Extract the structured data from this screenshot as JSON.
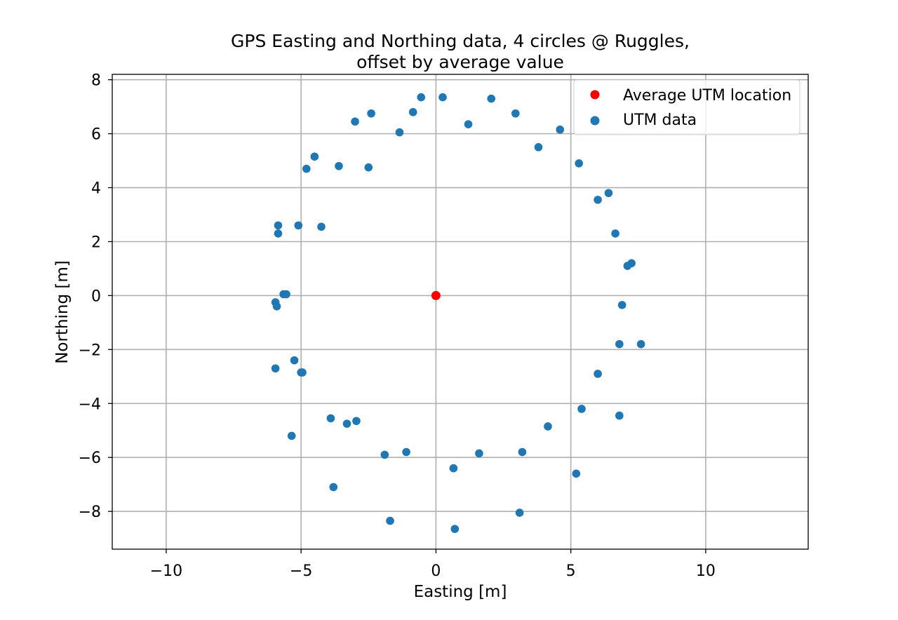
{
  "chart_data": {
    "type": "scatter",
    "title": "GPS Easting and Northing data, 4 circles @ Ruggles,",
    "subtitle": "offset by average value",
    "xlabel": "Easting [m]",
    "ylabel": "Northing [m]",
    "xlim": [
      -12,
      13.8
    ],
    "ylim": [
      -9.4,
      8.2
    ],
    "xticks": [
      -10,
      -5,
      0,
      5,
      10
    ],
    "xtick_labels": [
      "−10",
      "−5",
      "0",
      "5",
      "10"
    ],
    "yticks": [
      -8,
      -6,
      -4,
      -2,
      0,
      2,
      4,
      6,
      8
    ],
    "ytick_labels": [
      "−8",
      "−6",
      "−4",
      "−2",
      "0",
      "2",
      "4",
      "6",
      "8"
    ],
    "grid": true,
    "legend_position": "top-right",
    "series": [
      {
        "name": "Average UTM location",
        "color": "#ff0000",
        "points": [
          [
            0,
            0
          ]
        ]
      },
      {
        "name": "UTM data",
        "color": "#1f77b4",
        "points": [
          [
            -0.55,
            7.35
          ],
          [
            0.25,
            7.35
          ],
          [
            2.05,
            7.3
          ],
          [
            -0.85,
            6.8
          ],
          [
            -2.4,
            6.75
          ],
          [
            -3.0,
            6.45
          ],
          [
            2.95,
            6.75
          ],
          [
            1.2,
            6.35
          ],
          [
            -1.35,
            6.05
          ],
          [
            4.6,
            6.15
          ],
          [
            3.8,
            5.5
          ],
          [
            -4.5,
            5.15
          ],
          [
            -4.8,
            4.7
          ],
          [
            -3.6,
            4.8
          ],
          [
            -2.5,
            4.75
          ],
          [
            5.3,
            4.9
          ],
          [
            6.4,
            3.8
          ],
          [
            6.0,
            3.55
          ],
          [
            -5.85,
            2.6
          ],
          [
            -5.1,
            2.6
          ],
          [
            -4.25,
            2.55
          ],
          [
            -5.85,
            2.3
          ],
          [
            6.65,
            2.3
          ],
          [
            7.25,
            1.2
          ],
          [
            7.1,
            1.1
          ],
          [
            -5.65,
            0.05
          ],
          [
            -5.55,
            0.05
          ],
          [
            -5.95,
            -0.25
          ],
          [
            -5.9,
            -0.4
          ],
          [
            6.9,
            -0.35
          ],
          [
            6.8,
            -1.8
          ],
          [
            7.6,
            -1.8
          ],
          [
            -5.25,
            -2.4
          ],
          [
            -5.95,
            -2.7
          ],
          [
            -5.0,
            -2.85
          ],
          [
            -4.95,
            -2.85
          ],
          [
            6.0,
            -2.9
          ],
          [
            -3.9,
            -4.55
          ],
          [
            -3.3,
            -4.75
          ],
          [
            -2.95,
            -4.65
          ],
          [
            5.4,
            -4.2
          ],
          [
            6.8,
            -4.45
          ],
          [
            4.15,
            -4.85
          ],
          [
            -5.35,
            -5.2
          ],
          [
            -1.9,
            -5.9
          ],
          [
            -1.1,
            -5.8
          ],
          [
            1.6,
            -5.85
          ],
          [
            3.2,
            -5.8
          ],
          [
            0.65,
            -6.4
          ],
          [
            5.2,
            -6.6
          ],
          [
            -3.8,
            -7.1
          ],
          [
            -1.7,
            -8.35
          ],
          [
            0.7,
            -8.65
          ],
          [
            3.1,
            -8.05
          ]
        ]
      }
    ]
  }
}
